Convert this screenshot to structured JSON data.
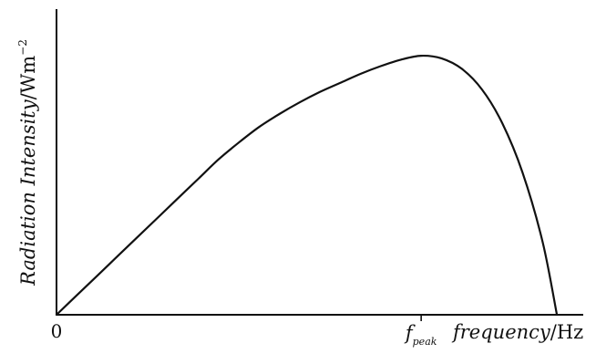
{
  "chart_data": {
    "type": "line",
    "title": "",
    "xlabel_italic": "frequency",
    "xlabel_unit": "/Hz",
    "ylabel_italic": "Radiation Intensity",
    "ylabel_unit": "/Wm",
    "ylabel_exponent": "−2",
    "origin_label": "0",
    "x_tick_symbol": "f",
    "x_tick_subscript": "peak",
    "curve_points": [
      [
        0,
        0
      ],
      [
        0.1,
        0.075
      ],
      [
        0.2,
        0.15
      ],
      [
        0.3,
        0.225
      ],
      [
        0.4,
        0.3
      ],
      [
        0.5,
        0.375
      ],
      [
        0.6,
        0.45
      ],
      [
        0.7,
        0.525
      ],
      [
        0.8,
        0.6
      ],
      [
        0.9,
        0.665
      ],
      [
        1.0,
        0.725
      ],
      [
        1.1,
        0.775
      ],
      [
        1.2,
        0.82
      ],
      [
        1.3,
        0.86
      ],
      [
        1.4,
        0.895
      ],
      [
        1.5,
        0.93
      ],
      [
        1.6,
        0.96
      ],
      [
        1.7,
        0.985
      ],
      [
        1.8,
        1.0
      ],
      [
        1.9,
        0.99
      ],
      [
        2.0,
        0.95
      ],
      [
        2.1,
        0.87
      ],
      [
        2.2,
        0.74
      ],
      [
        2.3,
        0.55
      ],
      [
        2.4,
        0.28
      ],
      [
        2.47,
        0.0
      ]
    ],
    "x_peak": 1.8,
    "xlim": [
      0,
      2.6
    ],
    "ylim": [
      0,
      1.18
    ],
    "grid": false,
    "legend": "none",
    "axis_color": "#111111",
    "curve_color": "#111111"
  }
}
